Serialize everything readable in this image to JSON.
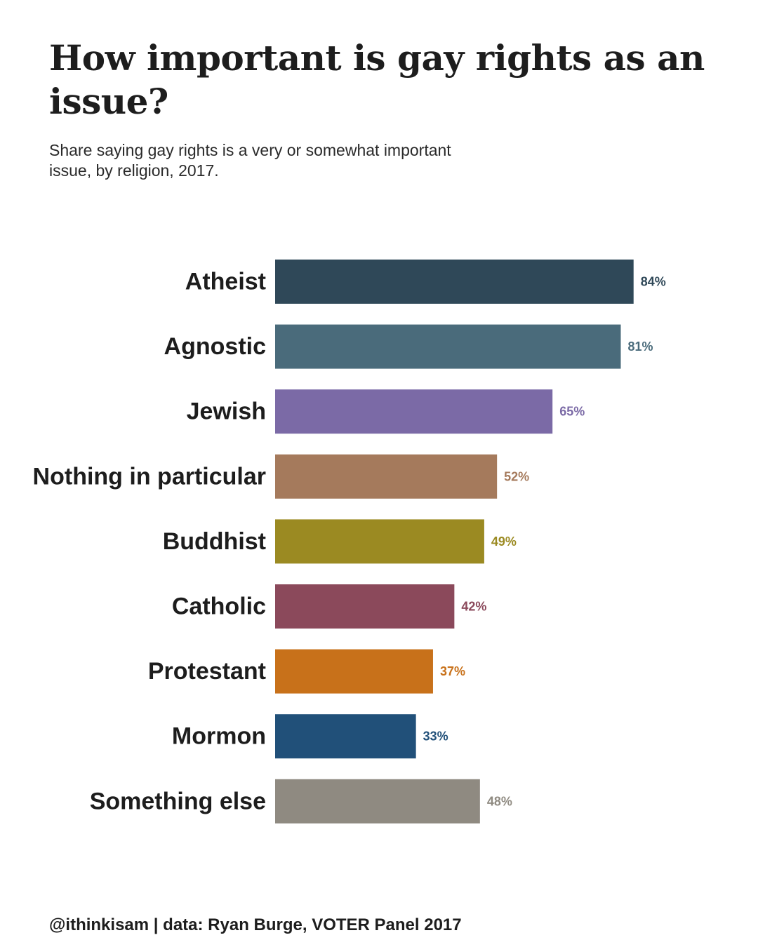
{
  "chart_data": {
    "type": "bar",
    "orientation": "horizontal",
    "title": "How important is gay rights as an issue?",
    "subtitle": "Share saying gay rights is a very or somewhat important issue, by religion, 2017.",
    "caption": "@ithinkisam | data: Ryan Burge, VOTER Panel 2017",
    "xlabel": "",
    "ylabel": "",
    "categories": [
      "Atheist",
      "Agnostic",
      "Jewish",
      "Nothing in particular",
      "Buddhist",
      "Catholic",
      "Protestant",
      "Mormon",
      "Something else"
    ],
    "values": [
      84,
      81,
      65,
      52,
      49,
      42,
      37,
      33,
      48
    ],
    "value_labels": [
      "84%",
      "81%",
      "65%",
      "52%",
      "49%",
      "42%",
      "37%",
      "33%",
      "48%"
    ],
    "colors": [
      "#2f4858",
      "#4a6b7b",
      "#7b6aa6",
      "#a57a5c",
      "#9b8a22",
      "#8b495b",
      "#c8711a",
      "#215079",
      "#8f8a81"
    ],
    "xlim": [
      0,
      100
    ],
    "grid": false,
    "legend": "none"
  }
}
